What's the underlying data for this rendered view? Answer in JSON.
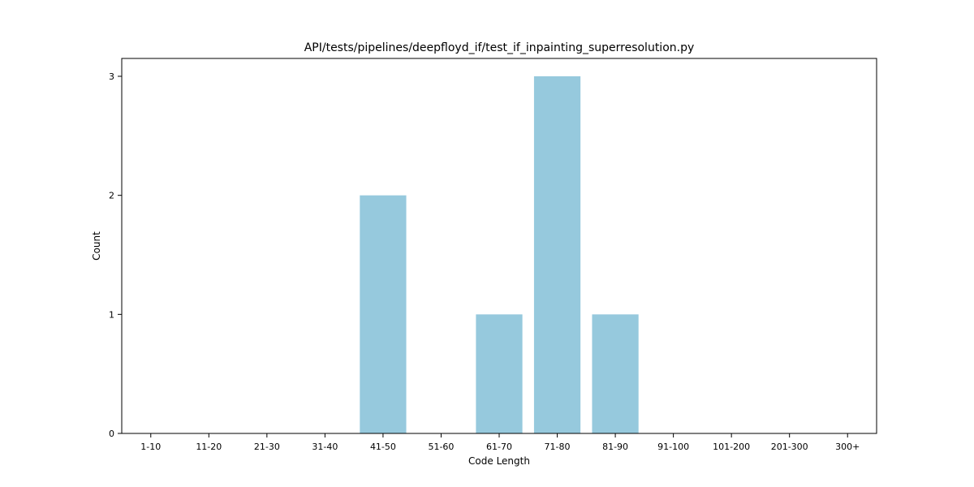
{
  "chart_data": {
    "type": "bar",
    "title": "API/tests/pipelines/deepfloyd_if/test_if_inpainting_superresolution.py",
    "xlabel": "Code Length",
    "ylabel": "Count",
    "categories": [
      "1-10",
      "11-20",
      "21-30",
      "31-40",
      "41-50",
      "51-60",
      "61-70",
      "71-80",
      "81-90",
      "91-100",
      "101-200",
      "201-300",
      "300+"
    ],
    "values": [
      0,
      0,
      0,
      0,
      2,
      0,
      1,
      3,
      1,
      0,
      0,
      0,
      0
    ],
    "ylim": [
      0,
      3.15
    ],
    "yticks": [
      0,
      1,
      2,
      3
    ],
    "grid": false,
    "bar_color": "#96c9dd"
  }
}
